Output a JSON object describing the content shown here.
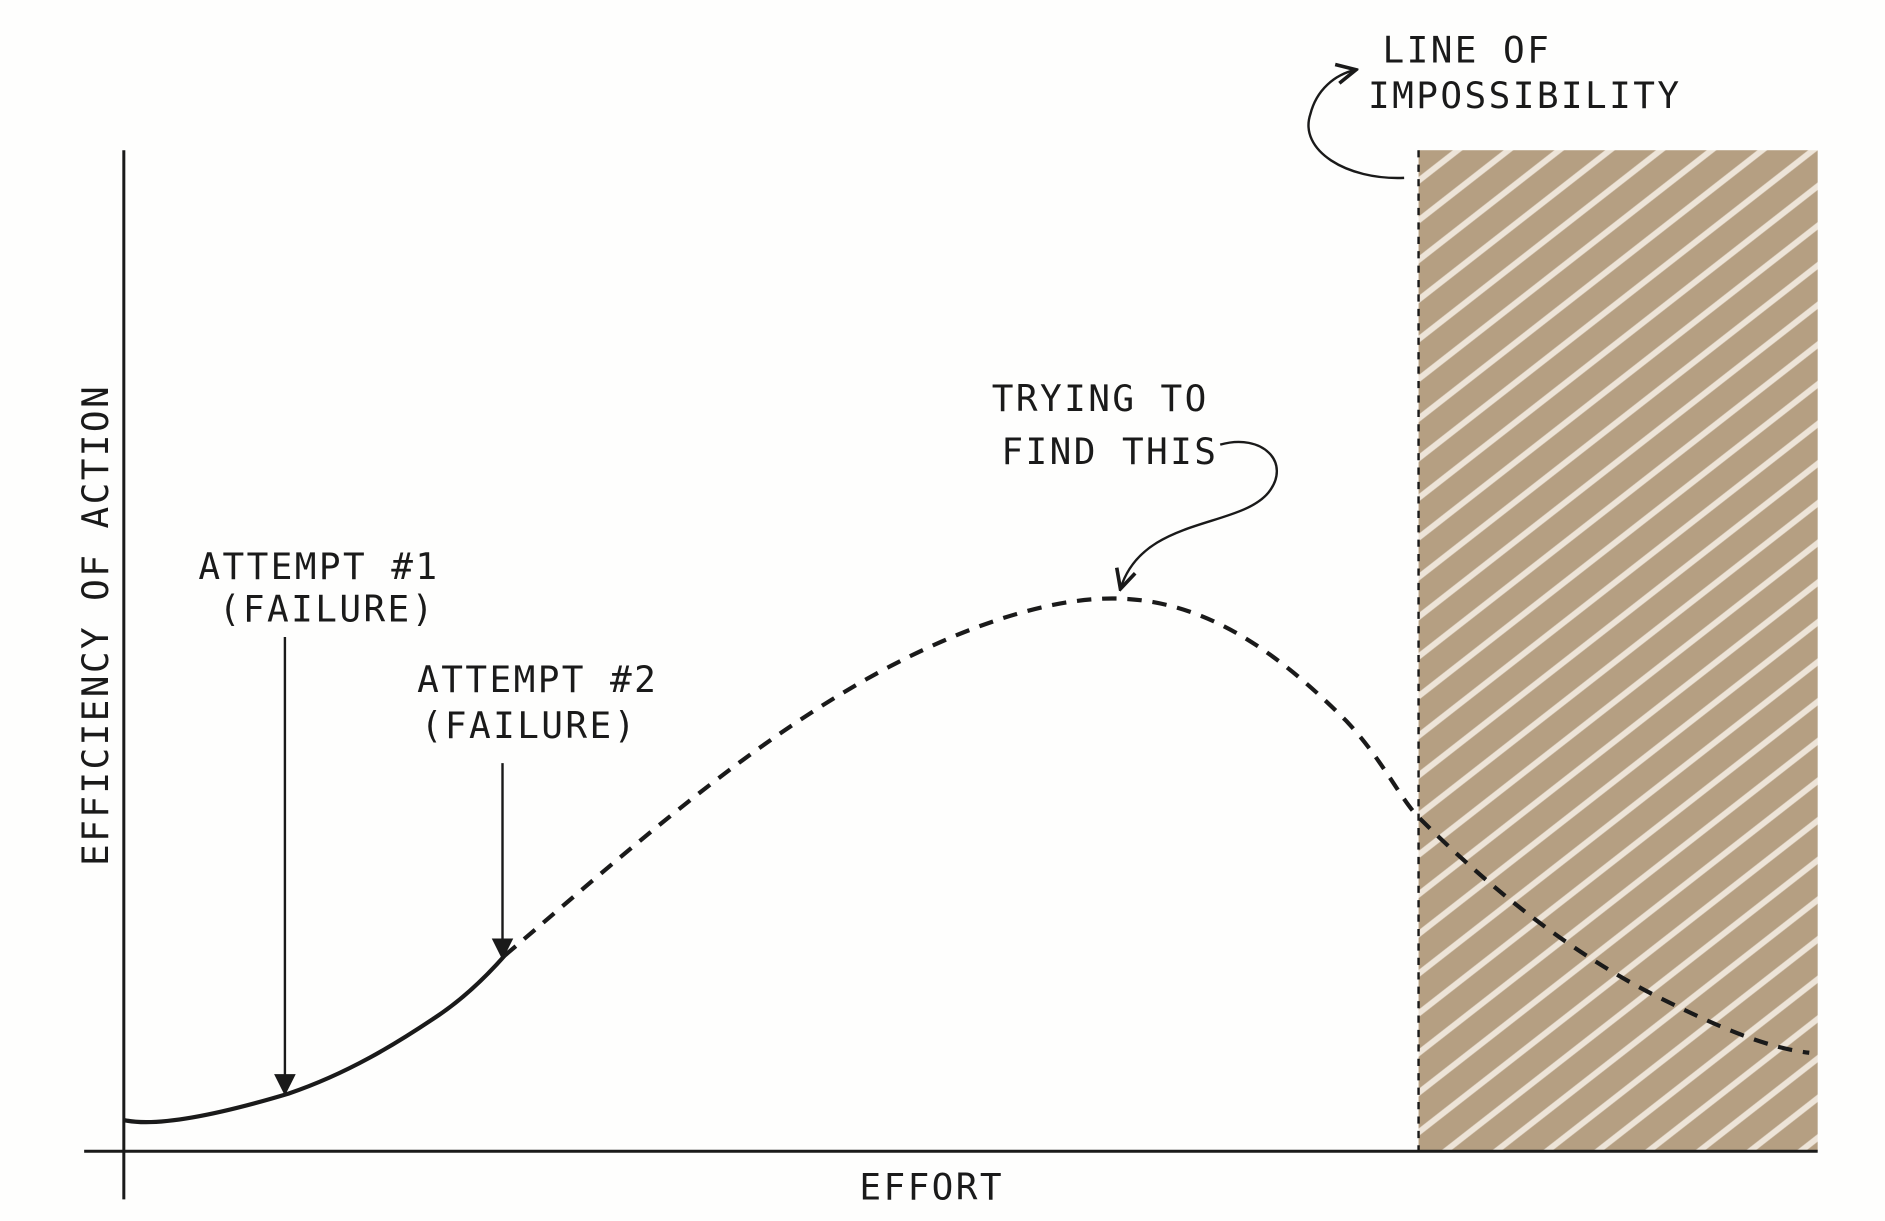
{
  "axes": {
    "y_label": "EFFICIENCY OF ACTION",
    "x_label": "EFFORT"
  },
  "annotations": {
    "attempt_1": {
      "title": "ATTEMPT #1",
      "note": "(FAILURE)"
    },
    "attempt_2": {
      "title": "ATTEMPT #2",
      "note": "(FAILURE)"
    },
    "target": {
      "line1": "TRYING TO",
      "line2": "FIND THIS"
    },
    "limit": {
      "line1": "LINE OF",
      "line2": "IMPOSSIBILITY"
    }
  }
}
